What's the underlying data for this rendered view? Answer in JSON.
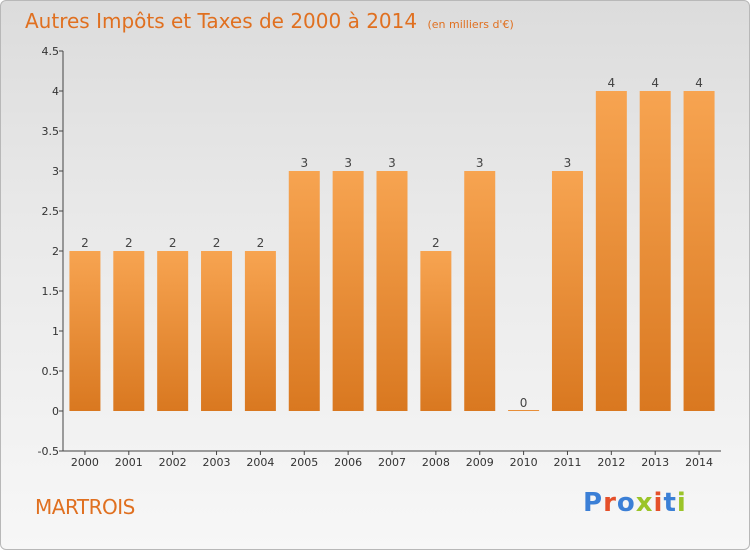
{
  "header": {
    "title": "Autres Impôts et Taxes de 2000 à 2014",
    "unit": "(en milliers d'€)"
  },
  "footer": {
    "commune": "MARTROIS",
    "logo_text": "Proxiti"
  },
  "colors": {
    "accent": "#e07020",
    "bar_light": "#f7a451",
    "bar_dark": "#d97820",
    "logo": [
      "#3b7fd6",
      "#e5502a",
      "#3b7fd6",
      "#9bc428",
      "#e5502a",
      "#3b7fd6",
      "#9bc428"
    ]
  },
  "chart_data": {
    "type": "bar",
    "title": "Autres Impôts et Taxes de 2000 à 2014",
    "subtitle": "(en milliers d'€)",
    "xlabel": "",
    "ylabel": "",
    "categories": [
      "2000",
      "2001",
      "2002",
      "2003",
      "2004",
      "2005",
      "2006",
      "2007",
      "2008",
      "2009",
      "2010",
      "2011",
      "2012",
      "2013",
      "2014"
    ],
    "values": [
      2,
      2,
      2,
      2,
      2,
      3,
      3,
      3,
      2,
      3,
      0,
      3,
      4,
      4,
      4
    ],
    "data_labels": [
      "2",
      "2",
      "2",
      "2",
      "2",
      "3",
      "3",
      "3",
      "2",
      "3",
      "0",
      "3",
      "4",
      "4",
      "4"
    ],
    "ylim": [
      -0.5,
      4.5
    ],
    "yticks": [
      -0.5,
      0,
      0.5,
      1,
      1.5,
      2,
      2.5,
      3,
      3.5,
      4,
      4.5
    ],
    "ytick_labels": [
      "-0.5",
      "0",
      "0.5",
      "1",
      "1.5",
      "2",
      "2.5",
      "3",
      "3.5",
      "4",
      "4.5"
    ],
    "grid": false,
    "legend": "none"
  }
}
